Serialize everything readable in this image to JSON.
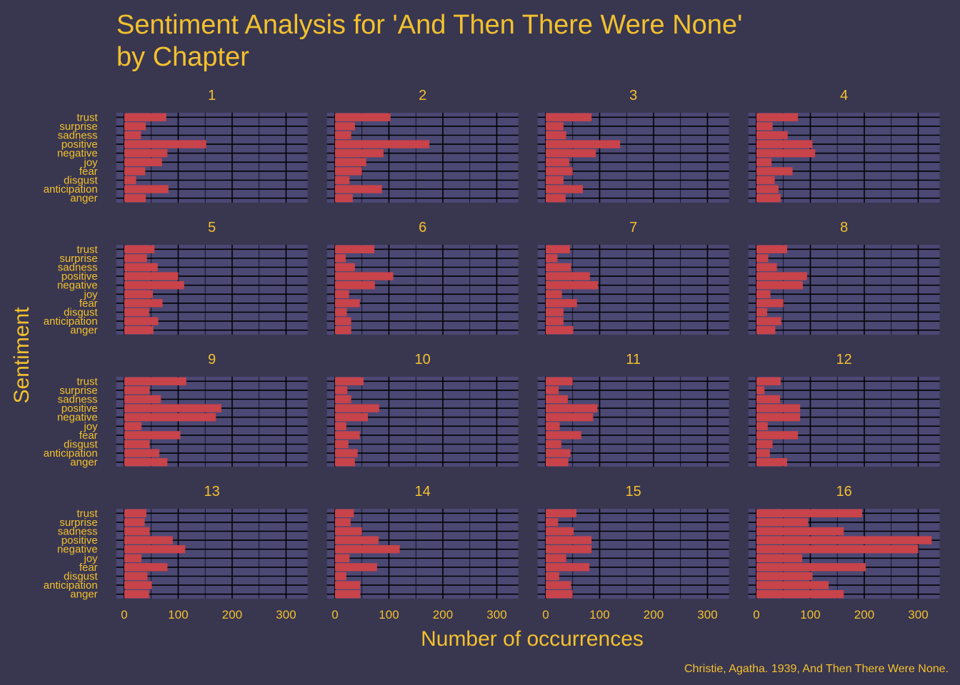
{
  "chart_data": {
    "type": "bar",
    "orientation": "horizontal",
    "title": "Sentiment Analysis for 'And Then There Were None'\nby Chapter",
    "xlabel": "Number of occurrences",
    "ylabel": "Sentiment",
    "caption": "Christie, Agatha. 1939, And Then There Were None.",
    "xlim": [
      -15,
      340
    ],
    "xticks": [
      0,
      100,
      200,
      300
    ],
    "xtick_labels": [
      "0",
      "100",
      "200",
      "300"
    ],
    "categories": [
      "trust",
      "surprise",
      "sadness",
      "positive",
      "negative",
      "joy",
      "fear",
      "disgust",
      "anticipation",
      "anger"
    ],
    "grid": true,
    "facets": 4,
    "colors": {
      "background": "#393650",
      "panel": "#4b4874",
      "grid": "#000000",
      "bar": "#c8434a",
      "text": "#f2c12e"
    },
    "panels": [
      {
        "label": "1",
        "values": [
          78,
          40,
          31,
          152,
          80,
          70,
          39,
          22,
          82,
          40
        ]
      },
      {
        "label": "2",
        "values": [
          103,
          37,
          30,
          175,
          90,
          58,
          50,
          27,
          87,
          33
        ]
      },
      {
        "label": "3",
        "values": [
          85,
          33,
          38,
          138,
          93,
          44,
          50,
          33,
          69,
          37
        ]
      },
      {
        "label": "4",
        "values": [
          77,
          30,
          58,
          104,
          109,
          28,
          67,
          34,
          41,
          45
        ]
      },
      {
        "label": "5",
        "values": [
          56,
          42,
          62,
          100,
          111,
          53,
          71,
          46,
          63,
          54
        ]
      },
      {
        "label": "6",
        "values": [
          73,
          20,
          37,
          108,
          74,
          26,
          46,
          22,
          30,
          30
        ]
      },
      {
        "label": "7",
        "values": [
          45,
          22,
          47,
          82,
          97,
          30,
          58,
          33,
          33,
          51
        ]
      },
      {
        "label": "8",
        "values": [
          57,
          22,
          38,
          94,
          86,
          26,
          50,
          20,
          46,
          35
        ]
      },
      {
        "label": "9",
        "values": [
          115,
          47,
          68,
          180,
          170,
          32,
          104,
          47,
          65,
          80
        ]
      },
      {
        "label": "10",
        "values": [
          53,
          23,
          30,
          82,
          61,
          21,
          46,
          25,
          42,
          37
        ]
      },
      {
        "label": "11",
        "values": [
          50,
          24,
          41,
          96,
          88,
          26,
          66,
          29,
          46,
          42
        ]
      },
      {
        "label": "12",
        "values": [
          45,
          15,
          44,
          81,
          81,
          21,
          77,
          30,
          25,
          57
        ]
      },
      {
        "label": "13",
        "values": [
          41,
          38,
          47,
          90,
          113,
          32,
          80,
          43,
          51,
          46
        ]
      },
      {
        "label": "14",
        "values": [
          35,
          29,
          50,
          81,
          120,
          27,
          78,
          21,
          47,
          47
        ]
      },
      {
        "label": "15",
        "values": [
          57,
          23,
          52,
          85,
          85,
          38,
          81,
          25,
          47,
          50
        ]
      },
      {
        "label": "16",
        "values": [
          196,
          96,
          162,
          325,
          300,
          85,
          203,
          104,
          134,
          162
        ]
      }
    ]
  }
}
